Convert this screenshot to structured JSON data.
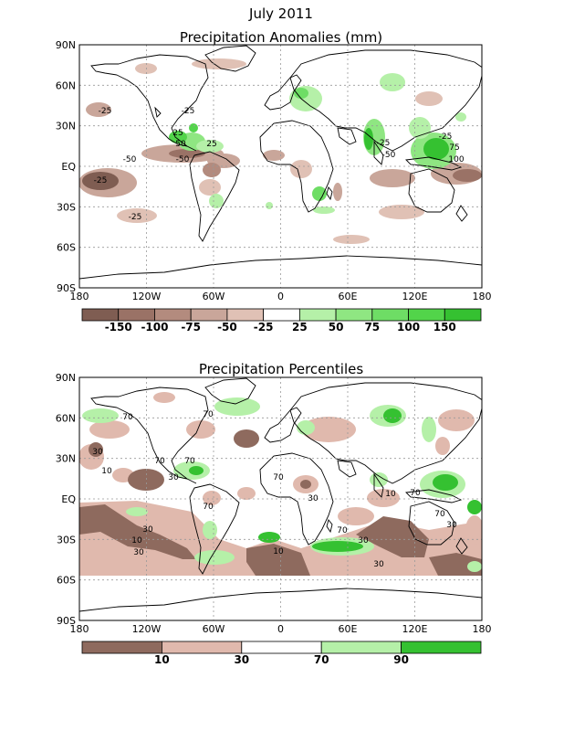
{
  "figure": {
    "title": "July 2011"
  },
  "panels": [
    {
      "id": "anomalies",
      "title": "Precipitation Anomalies (mm)",
      "lat_labels": [
        "90N",
        "60N",
        "30N",
        "EQ",
        "30S",
        "60S",
        "90S"
      ],
      "lon_labels": [
        "180",
        "120W",
        "60W",
        "0",
        "60E",
        "120E",
        "180"
      ],
      "colorbar": {
        "colors": [
          "#7f5d52",
          "#9a7266",
          "#b38b7e",
          "#c9a69a",
          "#e0c1b5",
          "#ffffff",
          "#b5f0a8",
          "#8fe682",
          "#6edd65",
          "#52d44a",
          "#35c131"
        ],
        "labels": [
          "-150",
          "-100",
          "-75",
          "-50",
          "-25",
          "25",
          "50",
          "75",
          "100",
          "150"
        ]
      },
      "contour_labels": [
        "-25",
        "-50",
        "-25",
        "25",
        "50",
        "-25",
        "25",
        "-50",
        "75",
        "100",
        "-25",
        "-50",
        "-25",
        "-25"
      ]
    },
    {
      "id": "percentiles",
      "title": "Precipitation Percentiles",
      "lat_labels": [
        "90N",
        "60N",
        "30N",
        "EQ",
        "30S",
        "60S",
        "90S"
      ],
      "lon_labels": [
        "180",
        "120W",
        "60W",
        "0",
        "60E",
        "120E",
        "180"
      ],
      "colorbar": {
        "colors": [
          "#8e6a5e",
          "#e0b9ad",
          "#ffffff",
          "#b5f0a8",
          "#35c131"
        ],
        "labels": [
          "10",
          "30",
          "70",
          "90"
        ]
      },
      "contour_labels": [
        "70",
        "70",
        "30",
        "10",
        "70",
        "70",
        "30",
        "70",
        "70",
        "10",
        "30",
        "30",
        "10",
        "30",
        "70",
        "30",
        "70",
        "70",
        "30",
        "10",
        "30"
      ]
    }
  ]
}
